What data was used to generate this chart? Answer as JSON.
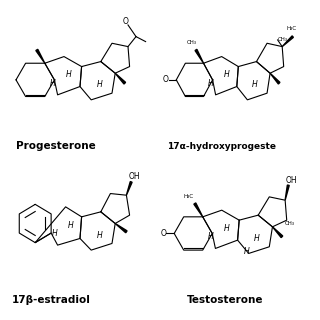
{
  "background": "#ffffff",
  "line_color": "#000000",
  "lw": 0.8,
  "labels": [
    "Progesterone",
    "17α-hydroxyprogeste",
    "17β-estradiol",
    "Testosterone"
  ],
  "label_fontsize": 7.5,
  "annot_fontsize": 4.5
}
